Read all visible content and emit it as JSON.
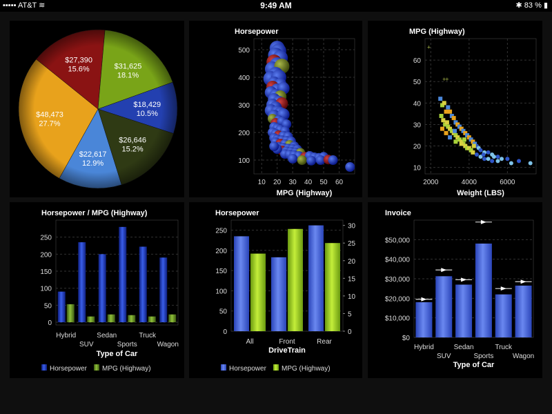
{
  "status_bar": {
    "carrier": "AT&T",
    "time": "9:49 AM",
    "battery": "83 %"
  },
  "colors": {
    "blue": "#2f56c8",
    "green": "#8dbb2a",
    "accent_pie": [
      "#2340b0",
      "#334018",
      "#4a86d8",
      "#e8a21c",
      "#8a1313",
      "#79a418"
    ]
  },
  "chart_data": [
    {
      "id": "pie",
      "type": "pie",
      "title": "",
      "slices": [
        {
          "value": "$18,429",
          "pct": "10.5%",
          "share": 10.5,
          "color": "#2340b0"
        },
        {
          "value": "$26,646",
          "pct": "15.2%",
          "share": 15.2,
          "color": "#2f3a14"
        },
        {
          "value": "$22,617",
          "pct": "12.9%",
          "share": 12.9,
          "color": "#4a86d8"
        },
        {
          "value": "$48,473",
          "pct": "27.7%",
          "share": 27.7,
          "color": "#e8a21c"
        },
        {
          "value": "$27,390",
          "pct": "15.6%",
          "share": 15.6,
          "color": "#8a1313"
        },
        {
          "value": "$31,625",
          "pct": "18.1%",
          "share": 18.1,
          "color": "#79a418"
        }
      ]
    },
    {
      "id": "bubble",
      "type": "scatter",
      "title": "Horsepower",
      "xlabel": "MPG (Highway)",
      "xlim": [
        5,
        70
      ],
      "ylim": [
        50,
        540
      ],
      "xticks": [
        "10",
        "20",
        "30",
        "40",
        "50",
        "60"
      ],
      "yticks": [
        "100",
        "200",
        "300",
        "400",
        "500"
      ],
      "points": [
        [
          20,
          505
        ],
        [
          21,
          495
        ],
        [
          19,
          480
        ],
        [
          22,
          470
        ],
        [
          18,
          455
        ],
        [
          20,
          445
        ],
        [
          17,
          430
        ],
        [
          23,
          440
        ],
        [
          19,
          410
        ],
        [
          16,
          395
        ],
        [
          21,
          400
        ],
        [
          18,
          380
        ],
        [
          22,
          375
        ],
        [
          17,
          365
        ],
        [
          20,
          355
        ],
        [
          24,
          360
        ],
        [
          16,
          345
        ],
        [
          19,
          335
        ],
        [
          22,
          330
        ],
        [
          18,
          320
        ],
        [
          21,
          310
        ],
        [
          17,
          300
        ],
        [
          23,
          305
        ],
        [
          19,
          290
        ],
        [
          16,
          280
        ],
        [
          20,
          275
        ],
        [
          22,
          270
        ],
        [
          18,
          260
        ],
        [
          24,
          265
        ],
        [
          17,
          250
        ],
        [
          21,
          245
        ],
        [
          19,
          235
        ],
        [
          23,
          240
        ],
        [
          26,
          230
        ],
        [
          18,
          220
        ],
        [
          20,
          215
        ],
        [
          22,
          210
        ],
        [
          25,
          205
        ],
        [
          17,
          200
        ],
        [
          19,
          195
        ],
        [
          21,
          190
        ],
        [
          24,
          188
        ],
        [
          27,
          185
        ],
        [
          18,
          180
        ],
        [
          20,
          175
        ],
        [
          23,
          172
        ],
        [
          26,
          170
        ],
        [
          29,
          168
        ],
        [
          19,
          165
        ],
        [
          22,
          160
        ],
        [
          25,
          158
        ],
        [
          28,
          155
        ],
        [
          31,
          150
        ],
        [
          21,
          148
        ],
        [
          24,
          145
        ],
        [
          27,
          142
        ],
        [
          30,
          140
        ],
        [
          33,
          138
        ],
        [
          23,
          135
        ],
        [
          26,
          132
        ],
        [
          29,
          130
        ],
        [
          32,
          128
        ],
        [
          35,
          126
        ],
        [
          25,
          122
        ],
        [
          28,
          120
        ],
        [
          31,
          118
        ],
        [
          34,
          115
        ],
        [
          38,
          112
        ],
        [
          41,
          115
        ],
        [
          44,
          110
        ],
        [
          47,
          108
        ],
        [
          50,
          112
        ],
        [
          30,
          105
        ],
        [
          36,
          100
        ],
        [
          42,
          98
        ],
        [
          48,
          100
        ],
        [
          53,
          102
        ],
        [
          56,
          100
        ],
        [
          67,
          75
        ],
        [
          20,
          140
        ],
        [
          18,
          150
        ]
      ]
    },
    {
      "id": "scatter",
      "type": "scatter",
      "title": "MPG (Highway)",
      "xlabel": "Weight (LBS)",
      "xlim": [
        1700,
        7500
      ],
      "ylim": [
        7,
        70
      ],
      "xticks": [
        "2000",
        "4000",
        "6000"
      ],
      "yticks": [
        "10",
        "20",
        "30",
        "40",
        "50",
        "60"
      ],
      "points": [
        [
          1900,
          66
        ],
        [
          2700,
          51
        ],
        [
          2850,
          51
        ],
        [
          2500,
          42
        ],
        [
          2600,
          39
        ],
        [
          2700,
          40
        ],
        [
          2800,
          36
        ],
        [
          2900,
          38
        ],
        [
          2550,
          34
        ],
        [
          2650,
          32
        ],
        [
          3000,
          36
        ],
        [
          3100,
          34
        ],
        [
          2750,
          30
        ],
        [
          2850,
          31
        ],
        [
          3200,
          33
        ],
        [
          3300,
          31
        ],
        [
          2900,
          29
        ],
        [
          3000,
          28
        ],
        [
          3400,
          30
        ],
        [
          3500,
          29
        ],
        [
          3100,
          27
        ],
        [
          3200,
          26
        ],
        [
          3600,
          28
        ],
        [
          3700,
          27
        ],
        [
          3300,
          25
        ],
        [
          3400,
          24
        ],
        [
          3800,
          26
        ],
        [
          3900,
          25
        ],
        [
          3500,
          23
        ],
        [
          3600,
          22
        ],
        [
          4000,
          24
        ],
        [
          4100,
          23
        ],
        [
          3700,
          21
        ],
        [
          3800,
          20
        ],
        [
          4200,
          22
        ],
        [
          4300,
          21
        ],
        [
          3900,
          19
        ],
        [
          4000,
          19
        ],
        [
          4400,
          20
        ],
        [
          4500,
          19
        ],
        [
          4100,
          18
        ],
        [
          4200,
          17
        ],
        [
          4600,
          18
        ],
        [
          4800,
          17
        ],
        [
          4400,
          16
        ],
        [
          4600,
          15
        ],
        [
          5000,
          17
        ],
        [
          5200,
          16
        ],
        [
          4800,
          14
        ],
        [
          5000,
          14
        ],
        [
          5500,
          15
        ],
        [
          5700,
          14
        ],
        [
          5200,
          13
        ],
        [
          5500,
          13
        ],
        [
          6000,
          14
        ],
        [
          6200,
          12
        ],
        [
          6600,
          13
        ],
        [
          7200,
          12
        ],
        [
          2800,
          26
        ],
        [
          3000,
          24
        ],
        [
          3300,
          22
        ],
        [
          3600,
          21
        ],
        [
          2600,
          28
        ],
        [
          3250,
          27
        ],
        [
          3750,
          23
        ],
        [
          4250,
          20
        ],
        [
          4750,
          16
        ],
        [
          5300,
          15
        ]
      ]
    },
    {
      "id": "bar1",
      "type": "bar",
      "title": "Horsepower / MPG (Highway)",
      "xlabel": "Type of Car",
      "categories": [
        "Hybrid",
        "SUV",
        "Sedan",
        "Sports",
        "Truck",
        "Wagon"
      ],
      "series": [
        {
          "name": "Horsepower",
          "values": [
            90,
            235,
            200,
            280,
            222,
            190
          ]
        },
        {
          "name": "MPG (Highway)",
          "values": [
            53,
            17,
            23,
            21,
            17,
            23
          ]
        }
      ],
      "ylim": [
        -8,
        300
      ],
      "yticks": [
        "0",
        "50",
        "100",
        "150",
        "200",
        "250"
      ]
    },
    {
      "id": "bar2",
      "type": "bar",
      "title": "Horsepower",
      "xlabel": "DriveTrain",
      "categories": [
        "All",
        "Front",
        "Rear"
      ],
      "series": [
        {
          "name": "Horsepower",
          "values": [
            235,
            183,
            262
          ]
        },
        {
          "name": "MPG (Highway)",
          "values": [
            22,
            29,
            25
          ]
        }
      ],
      "ylim": [
        0,
        275
      ],
      "yticks": [
        "0",
        "50",
        "100",
        "150",
        "200",
        "250"
      ],
      "y2lim": [
        0,
        31.5
      ],
      "y2ticks": [
        "0",
        "5",
        "10",
        "15",
        "20",
        "25",
        "30"
      ]
    },
    {
      "id": "bar3",
      "type": "bar",
      "title": "Invoice",
      "xlabel": "Type of Car",
      "categories": [
        "Hybrid",
        "SUV",
        "Sedan",
        "Sports",
        "Truck",
        "Wagon"
      ],
      "series": [
        {
          "name": "Invoice",
          "values": [
            18000,
            31300,
            27000,
            48000,
            22000,
            26500
          ]
        }
      ],
      "targets": [
        19500,
        34500,
        29500,
        59000,
        25000,
        28500
      ],
      "ylim": [
        0,
        60000
      ],
      "yticks": [
        "$0",
        "$10,000",
        "$20,000",
        "$30,000",
        "$40,000",
        "$50,000"
      ]
    }
  ]
}
